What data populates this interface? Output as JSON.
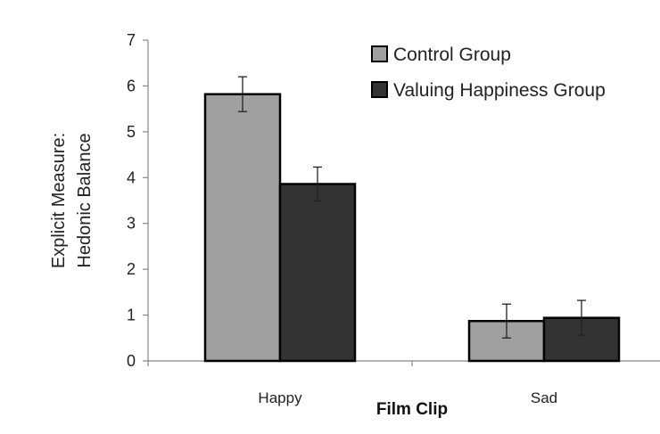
{
  "chart_data": {
    "type": "bar",
    "title": "",
    "xlabel": "Film Clip",
    "ylabel_lines": [
      "Explicit Measure:",
      "Hedonic Balance"
    ],
    "ylim": [
      0,
      7
    ],
    "yticks": [
      0,
      1,
      2,
      3,
      4,
      5,
      6,
      7
    ],
    "categories": [
      "Happy",
      "Sad"
    ],
    "series": [
      {
        "name": "Control Group",
        "values": [
          5.82,
          0.87
        ],
        "errors": [
          0.38,
          0.37
        ],
        "color": "#a0a0a0"
      },
      {
        "name": "Valuing Happiness Group",
        "values": [
          3.86,
          0.94
        ],
        "errors": [
          0.37,
          0.38
        ],
        "color": "#333333"
      }
    ],
    "legend_position": "top-right",
    "grid": false
  }
}
